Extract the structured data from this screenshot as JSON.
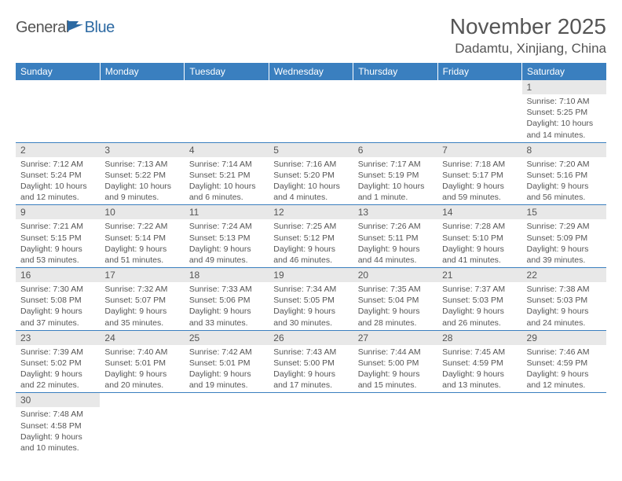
{
  "logo": {
    "general": "General",
    "blue": "Blue"
  },
  "title": "November 2025",
  "location": "Dadamtu, Xinjiang, China",
  "style": {
    "header_bg": "#3a7fbf",
    "header_text": "#ffffff",
    "daynum_bg": "#e8e8e8",
    "text_color": "#555555",
    "border_color": "#3a7fbf"
  },
  "weekdays": [
    "Sunday",
    "Monday",
    "Tuesday",
    "Wednesday",
    "Thursday",
    "Friday",
    "Saturday"
  ],
  "days": {
    "1": {
      "sunrise": "7:10 AM",
      "sunset": "5:25 PM",
      "daylight": "10 hours and 14 minutes."
    },
    "2": {
      "sunrise": "7:12 AM",
      "sunset": "5:24 PM",
      "daylight": "10 hours and 12 minutes."
    },
    "3": {
      "sunrise": "7:13 AM",
      "sunset": "5:22 PM",
      "daylight": "10 hours and 9 minutes."
    },
    "4": {
      "sunrise": "7:14 AM",
      "sunset": "5:21 PM",
      "daylight": "10 hours and 6 minutes."
    },
    "5": {
      "sunrise": "7:16 AM",
      "sunset": "5:20 PM",
      "daylight": "10 hours and 4 minutes."
    },
    "6": {
      "sunrise": "7:17 AM",
      "sunset": "5:19 PM",
      "daylight": "10 hours and 1 minute."
    },
    "7": {
      "sunrise": "7:18 AM",
      "sunset": "5:17 PM",
      "daylight": "9 hours and 59 minutes."
    },
    "8": {
      "sunrise": "7:20 AM",
      "sunset": "5:16 PM",
      "daylight": "9 hours and 56 minutes."
    },
    "9": {
      "sunrise": "7:21 AM",
      "sunset": "5:15 PM",
      "daylight": "9 hours and 53 minutes."
    },
    "10": {
      "sunrise": "7:22 AM",
      "sunset": "5:14 PM",
      "daylight": "9 hours and 51 minutes."
    },
    "11": {
      "sunrise": "7:24 AM",
      "sunset": "5:13 PM",
      "daylight": "9 hours and 49 minutes."
    },
    "12": {
      "sunrise": "7:25 AM",
      "sunset": "5:12 PM",
      "daylight": "9 hours and 46 minutes."
    },
    "13": {
      "sunrise": "7:26 AM",
      "sunset": "5:11 PM",
      "daylight": "9 hours and 44 minutes."
    },
    "14": {
      "sunrise": "7:28 AM",
      "sunset": "5:10 PM",
      "daylight": "9 hours and 41 minutes."
    },
    "15": {
      "sunrise": "7:29 AM",
      "sunset": "5:09 PM",
      "daylight": "9 hours and 39 minutes."
    },
    "16": {
      "sunrise": "7:30 AM",
      "sunset": "5:08 PM",
      "daylight": "9 hours and 37 minutes."
    },
    "17": {
      "sunrise": "7:32 AM",
      "sunset": "5:07 PM",
      "daylight": "9 hours and 35 minutes."
    },
    "18": {
      "sunrise": "7:33 AM",
      "sunset": "5:06 PM",
      "daylight": "9 hours and 33 minutes."
    },
    "19": {
      "sunrise": "7:34 AM",
      "sunset": "5:05 PM",
      "daylight": "9 hours and 30 minutes."
    },
    "20": {
      "sunrise": "7:35 AM",
      "sunset": "5:04 PM",
      "daylight": "9 hours and 28 minutes."
    },
    "21": {
      "sunrise": "7:37 AM",
      "sunset": "5:03 PM",
      "daylight": "9 hours and 26 minutes."
    },
    "22": {
      "sunrise": "7:38 AM",
      "sunset": "5:03 PM",
      "daylight": "9 hours and 24 minutes."
    },
    "23": {
      "sunrise": "7:39 AM",
      "sunset": "5:02 PM",
      "daylight": "9 hours and 22 minutes."
    },
    "24": {
      "sunrise": "7:40 AM",
      "sunset": "5:01 PM",
      "daylight": "9 hours and 20 minutes."
    },
    "25": {
      "sunrise": "7:42 AM",
      "sunset": "5:01 PM",
      "daylight": "9 hours and 19 minutes."
    },
    "26": {
      "sunrise": "7:43 AM",
      "sunset": "5:00 PM",
      "daylight": "9 hours and 17 minutes."
    },
    "27": {
      "sunrise": "7:44 AM",
      "sunset": "5:00 PM",
      "daylight": "9 hours and 15 minutes."
    },
    "28": {
      "sunrise": "7:45 AM",
      "sunset": "4:59 PM",
      "daylight": "9 hours and 13 minutes."
    },
    "29": {
      "sunrise": "7:46 AM",
      "sunset": "4:59 PM",
      "daylight": "9 hours and 12 minutes."
    },
    "30": {
      "sunrise": "7:48 AM",
      "sunset": "4:58 PM",
      "daylight": "9 hours and 10 minutes."
    }
  },
  "labels": {
    "sunrise": "Sunrise:",
    "sunset": "Sunset:",
    "daylight": "Daylight:"
  },
  "grid": [
    [
      null,
      null,
      null,
      null,
      null,
      null,
      "1"
    ],
    [
      "2",
      "3",
      "4",
      "5",
      "6",
      "7",
      "8"
    ],
    [
      "9",
      "10",
      "11",
      "12",
      "13",
      "14",
      "15"
    ],
    [
      "16",
      "17",
      "18",
      "19",
      "20",
      "21",
      "22"
    ],
    [
      "23",
      "24",
      "25",
      "26",
      "27",
      "28",
      "29"
    ],
    [
      "30",
      null,
      null,
      null,
      null,
      null,
      null
    ]
  ]
}
